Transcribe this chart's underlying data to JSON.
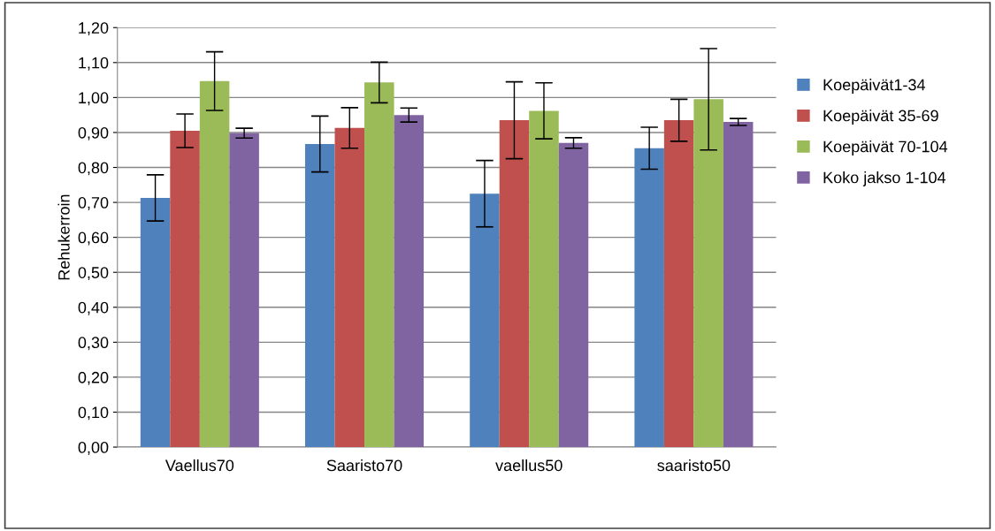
{
  "chart_data": {
    "type": "bar",
    "ylabel": "Rehukerroin",
    "categories": [
      "Vaellus70",
      "Saaristo70",
      "vaellus50",
      "saaristo50"
    ],
    "series": [
      {
        "name": "Koepäivät1-34",
        "color": "#4f81bd",
        "values": [
          0.713,
          0.867,
          0.725,
          0.855
        ],
        "errors": [
          0.066,
          0.08,
          0.095,
          0.06
        ]
      },
      {
        "name": "Koepäivät 35-69",
        "color": "#c0504d",
        "values": [
          0.905,
          0.913,
          0.935,
          0.935
        ],
        "errors": [
          0.048,
          0.058,
          0.11,
          0.06
        ]
      },
      {
        "name": "Koepäivät 70-104",
        "color": "#9bbb59",
        "values": [
          1.047,
          1.043,
          0.962,
          0.995
        ],
        "errors": [
          0.084,
          0.058,
          0.08,
          0.145
        ]
      },
      {
        "name": "Koko jakso 1-104",
        "color": "#8064a2",
        "values": [
          0.898,
          0.95,
          0.87,
          0.93
        ],
        "errors": [
          0.014,
          0.02,
          0.015,
          0.01
        ]
      }
    ],
    "ylim": [
      0,
      1.2
    ],
    "yticks": [
      {
        "value": 0,
        "label": "0,00"
      },
      {
        "value": 0.1,
        "label": "0,10"
      },
      {
        "value": 0.2,
        "label": "0,20"
      },
      {
        "value": 0.3,
        "label": "0,30"
      },
      {
        "value": 0.4,
        "label": "0,40"
      },
      {
        "value": 0.5,
        "label": "0,50"
      },
      {
        "value": 0.6,
        "label": "0,60"
      },
      {
        "value": 0.7,
        "label": "0,70"
      },
      {
        "value": 0.8,
        "label": "0,80"
      },
      {
        "value": 0.9,
        "label": "0,90"
      },
      {
        "value": 1.0,
        "label": "1,00"
      },
      {
        "value": 1.1,
        "label": "1,10"
      },
      {
        "value": 1.2,
        "label": "1,20"
      }
    ],
    "grid": "y",
    "legend": "right"
  }
}
